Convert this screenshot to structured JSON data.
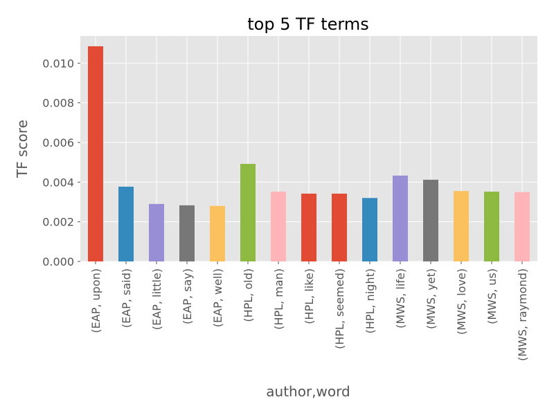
{
  "chart_data": {
    "type": "bar",
    "title": "top 5 TF terms",
    "xlabel": "author,word",
    "ylabel": "TF score",
    "categories": [
      "(EAP, upon)",
      "(EAP, said)",
      "(EAP, little)",
      "(EAP, say)",
      "(EAP, well)",
      "(HPL, old)",
      "(HPL, man)",
      "(HPL, like)",
      "(HPL, seemed)",
      "(HPL, night)",
      "(MWS, life)",
      "(MWS, yet)",
      "(MWS, love)",
      "(MWS, us)",
      "(MWS, raymond)"
    ],
    "values": [
      0.01085,
      0.00377,
      0.0029,
      0.00283,
      0.0028,
      0.00492,
      0.00352,
      0.00342,
      0.00342,
      0.0032,
      0.00433,
      0.00412,
      0.00355,
      0.00352,
      0.0035
    ],
    "colors": [
      "#E24A33",
      "#348ABD",
      "#988ED5",
      "#777777",
      "#FBC15E",
      "#8EBA42",
      "#FFB5B8",
      "#E24A33",
      "#E24A33",
      "#348ABD",
      "#988ED5",
      "#777777",
      "#FBC15E",
      "#8EBA42",
      "#FFB5B8"
    ],
    "yticks": [
      "0.000",
      "0.002",
      "0.004",
      "0.006",
      "0.008",
      "0.010"
    ],
    "ylim": [
      0,
      0.01137
    ],
    "grid": true,
    "background": "#E5E5E5"
  }
}
